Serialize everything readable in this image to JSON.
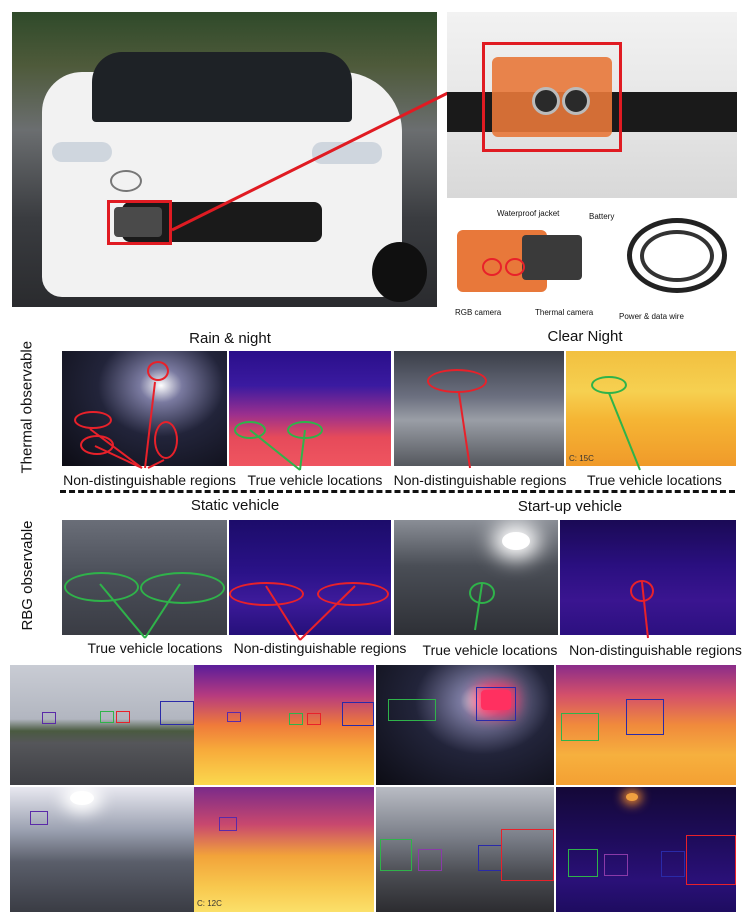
{
  "top": {
    "equipment_labels": {
      "waterproof_jacket": "Waterproof jacket",
      "battery": "Battery",
      "rgb_camera": "RGB camera",
      "thermal_camera": "Thermal camera",
      "power_data_wire": "Power & data wire"
    }
  },
  "thermal_section": {
    "side_label": "Thermal observable",
    "headers": [
      "Rain & night",
      "Clear Night"
    ],
    "captions": [
      "Non-distinguishable regions",
      "True vehicle locations",
      "Non-distinguishable regions",
      "True vehicle locations"
    ],
    "temp_readout": "C: 15C"
  },
  "rgb_section": {
    "side_label": "RBG observable",
    "headers": [
      "Static vehicle",
      "Start-up vehicle"
    ],
    "captions": [
      "True vehicle locations",
      "Non-distinguishable regions",
      "True vehicle locations",
      "Non-distinguishable regions"
    ]
  },
  "bottom": {
    "temp_readout": "C: 12C"
  },
  "colors": {
    "red_marker": "#e8212a",
    "green_marker": "#2fb34a",
    "blue_box": "#2a2aa8"
  }
}
